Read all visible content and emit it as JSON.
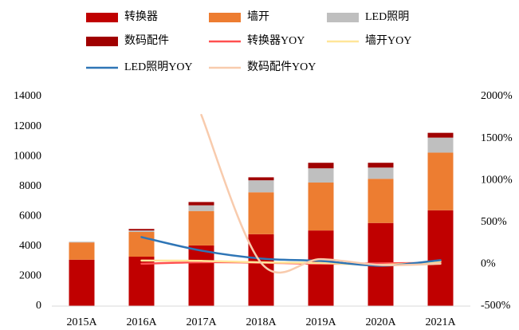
{
  "chart_data": {
    "type": "bar",
    "categories": [
      "2015A",
      "2016A",
      "2017A",
      "2018A",
      "2019A",
      "2020A",
      "2021A"
    ],
    "series": [
      {
        "name": "转换器",
        "type": "bar",
        "color": "#c00000",
        "values": [
          3100,
          3300,
          4050,
          4800,
          5050,
          5550,
          6400
        ]
      },
      {
        "name": "墙开",
        "type": "bar",
        "color": "#ed7d31",
        "values": [
          1150,
          1650,
          2300,
          2800,
          3200,
          2950,
          3850
        ]
      },
      {
        "name": "LED照明",
        "type": "bar",
        "color": "#bfbfbf",
        "values": [
          50,
          100,
          380,
          800,
          950,
          750,
          1000
        ]
      },
      {
        "name": "数码配件",
        "type": "bar",
        "color": "#a00000",
        "values": [
          0,
          100,
          220,
          200,
          370,
          320,
          320
        ]
      },
      {
        "name": "转换器YOY",
        "type": "line",
        "axis": "y2",
        "color": "#ff5050",
        "values": [
          null,
          5,
          23,
          18,
          5,
          10,
          15
        ]
      },
      {
        "name": "墙开YOY",
        "type": "line",
        "axis": "y2",
        "color": "#ffe699",
        "values": [
          null,
          43,
          39,
          22,
          14,
          -8,
          31
        ]
      },
      {
        "name": "LED照明YOY",
        "type": "line",
        "axis": "y2",
        "color": "#2e75b6",
        "values": [
          null,
          323,
          162,
          67,
          38,
          -19,
          48
        ]
      },
      {
        "name": "数码配件YOY",
        "type": "line",
        "axis": "y2",
        "color": "#f8cbad",
        "values": [
          null,
          null,
          1780,
          15,
          60,
          -10,
          5
        ]
      }
    ],
    "ylim": [
      0,
      14000
    ],
    "yticks": [
      0,
      2000,
      4000,
      6000,
      8000,
      10000,
      12000,
      14000
    ],
    "y2lim": [
      -500,
      2000
    ],
    "y2ticks": [
      {
        "value": -500,
        "label": "-500%"
      },
      {
        "value": 0,
        "label": "0%"
      },
      {
        "value": 500,
        "label": "500%"
      },
      {
        "value": 1000,
        "label": "1000%"
      },
      {
        "value": 1500,
        "label": "1500%"
      },
      {
        "value": 2000,
        "label": "2000%"
      }
    ],
    "grid": false,
    "legend": "top"
  }
}
